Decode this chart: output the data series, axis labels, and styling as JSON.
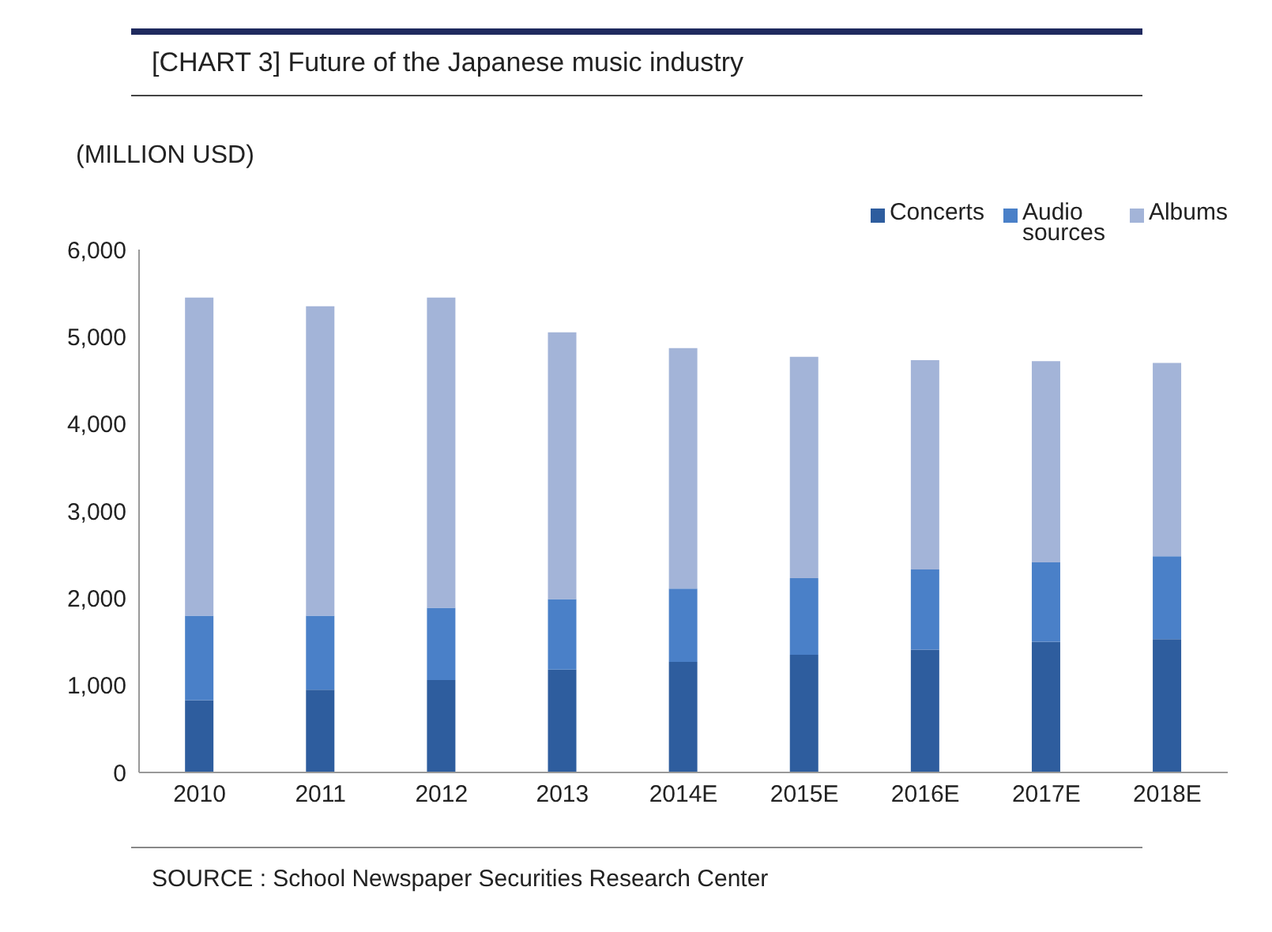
{
  "chart_data": {
    "type": "bar",
    "title": "[CHART 3] Future of the Japanese music industry",
    "ylabel": "(MILLION USD)",
    "categories": [
      "2010",
      "2011",
      "2012",
      "2013",
      "2014E",
      "2015E",
      "2016E",
      "2017E",
      "2018E"
    ],
    "stacked": true,
    "series": [
      {
        "name": "Concerts",
        "color": "#2e5d9e",
        "values": [
          830,
          950,
          1060,
          1180,
          1270,
          1350,
          1410,
          1500,
          1530
        ]
      },
      {
        "name": "Audio sources",
        "color": "#4a80c8",
        "values": [
          970,
          850,
          830,
          810,
          840,
          880,
          920,
          910,
          950
        ]
      },
      {
        "name": "Albums",
        "color": "#a3b4d8",
        "values": [
          3650,
          3550,
          3560,
          3060,
          2760,
          2540,
          2400,
          2310,
          2220
        ]
      }
    ],
    "ylim": [
      0,
      6000
    ],
    "yticks": [
      {
        "value": 0,
        "label": "0"
      },
      {
        "value": 1000,
        "label": "1,000"
      },
      {
        "value": 2000,
        "label": "2,000"
      },
      {
        "value": 3000,
        "label": "3,000"
      },
      {
        "value": 4000,
        "label": "4,000"
      },
      {
        "value": 5000,
        "label": "5,000"
      },
      {
        "value": 6000,
        "label": "6,000"
      }
    ],
    "legend": "top right",
    "annotations": [
      "SOURCE : School Newspaper Securities Research Center"
    ]
  }
}
